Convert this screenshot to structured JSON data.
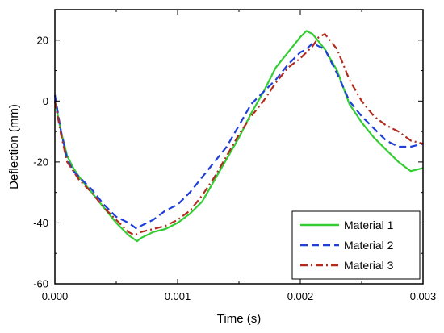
{
  "chart_data": {
    "type": "line",
    "title": "",
    "xlabel": "Time (s)",
    "ylabel": "Deflection (mm)",
    "xlim": [
      0,
      0.003
    ],
    "ylim": [
      -60,
      30
    ],
    "x_ticks": [
      0,
      0.001,
      0.002,
      0.003
    ],
    "x_tick_labels": [
      "0.000",
      "0.001",
      "0.002",
      "0.003"
    ],
    "y_ticks": [
      -60,
      -40,
      -20,
      0,
      20
    ],
    "y_tick_labels": [
      "-60",
      "-40",
      "-20",
      "0",
      "20"
    ],
    "grid": false,
    "legend_position": "bottom-right",
    "series": [
      {
        "name": "Material 1",
        "color": "#33cc33",
        "dash": "solid",
        "points": [
          [
            0,
            0
          ],
          [
            5e-05,
            -10
          ],
          [
            0.0001,
            -18
          ],
          [
            0.00015,
            -22
          ],
          [
            0.0002,
            -25
          ],
          [
            0.0003,
            -30
          ],
          [
            0.0004,
            -35
          ],
          [
            0.0005,
            -40
          ],
          [
            0.0006,
            -44
          ],
          [
            0.00067,
            -46
          ],
          [
            0.0007,
            -45
          ],
          [
            0.0008,
            -43
          ],
          [
            0.0009,
            -42
          ],
          [
            0.001,
            -40
          ],
          [
            0.0011,
            -37
          ],
          [
            0.0012,
            -33
          ],
          [
            0.0013,
            -26
          ],
          [
            0.0014,
            -19
          ],
          [
            0.0015,
            -12
          ],
          [
            0.0016,
            -4
          ],
          [
            0.0017,
            3
          ],
          [
            0.0018,
            11
          ],
          [
            0.0019,
            16
          ],
          [
            0.002,
            21
          ],
          [
            0.00205,
            23
          ],
          [
            0.0021,
            22
          ],
          [
            0.0022,
            17
          ],
          [
            0.0023,
            10
          ],
          [
            0.0024,
            -1
          ],
          [
            0.0025,
            -7
          ],
          [
            0.0026,
            -12
          ],
          [
            0.0027,
            -16
          ],
          [
            0.0028,
            -20
          ],
          [
            0.0029,
            -23
          ],
          [
            0.003,
            -22
          ]
        ]
      },
      {
        "name": "Material 2",
        "color": "#1f3fd9",
        "dash": "dashed",
        "points": [
          [
            0,
            2
          ],
          [
            5e-05,
            -10
          ],
          [
            0.0001,
            -19
          ],
          [
            0.00015,
            -23
          ],
          [
            0.0002,
            -25
          ],
          [
            0.0003,
            -29
          ],
          [
            0.0004,
            -34
          ],
          [
            0.0005,
            -38
          ],
          [
            0.0006,
            -40
          ],
          [
            0.00067,
            -42
          ],
          [
            0.0007,
            -41
          ],
          [
            0.0008,
            -39
          ],
          [
            0.0009,
            -36
          ],
          [
            0.001,
            -34
          ],
          [
            0.0011,
            -30
          ],
          [
            0.0012,
            -25
          ],
          [
            0.0013,
            -20
          ],
          [
            0.0014,
            -15
          ],
          [
            0.0015,
            -8
          ],
          [
            0.0016,
            -1
          ],
          [
            0.0017,
            3
          ],
          [
            0.0018,
            7
          ],
          [
            0.0019,
            12
          ],
          [
            0.002,
            16
          ],
          [
            0.00205,
            17
          ],
          [
            0.0021,
            19
          ],
          [
            0.0022,
            17
          ],
          [
            0.0023,
            9
          ],
          [
            0.0024,
            0
          ],
          [
            0.0025,
            -5
          ],
          [
            0.0026,
            -9
          ],
          [
            0.0027,
            -13
          ],
          [
            0.0028,
            -15
          ],
          [
            0.0029,
            -15
          ],
          [
            0.003,
            -14
          ]
        ]
      },
      {
        "name": "Material 3",
        "color": "#b22b1e",
        "dash": "dash-dot",
        "points": [
          [
            0,
            0
          ],
          [
            5e-05,
            -11
          ],
          [
            0.0001,
            -20
          ],
          [
            0.00015,
            -23
          ],
          [
            0.0002,
            -26
          ],
          [
            0.0003,
            -30
          ],
          [
            0.0004,
            -35
          ],
          [
            0.0005,
            -39
          ],
          [
            0.0006,
            -43
          ],
          [
            0.00065,
            -44
          ],
          [
            0.0007,
            -43
          ],
          [
            0.0008,
            -42
          ],
          [
            0.0009,
            -41
          ],
          [
            0.001,
            -39
          ],
          [
            0.0011,
            -36
          ],
          [
            0.0012,
            -31
          ],
          [
            0.0013,
            -25
          ],
          [
            0.0014,
            -18
          ],
          [
            0.0015,
            -11
          ],
          [
            0.0016,
            -5
          ],
          [
            0.0017,
            0
          ],
          [
            0.0018,
            6
          ],
          [
            0.0019,
            11
          ],
          [
            0.002,
            14
          ],
          [
            0.0021,
            18
          ],
          [
            0.00215,
            21
          ],
          [
            0.0022,
            22
          ],
          [
            0.0023,
            17
          ],
          [
            0.0024,
            7
          ],
          [
            0.0025,
            0
          ],
          [
            0.0026,
            -5
          ],
          [
            0.0027,
            -8
          ],
          [
            0.0028,
            -10
          ],
          [
            0.0029,
            -13
          ],
          [
            0.003,
            -14
          ]
        ]
      }
    ]
  }
}
